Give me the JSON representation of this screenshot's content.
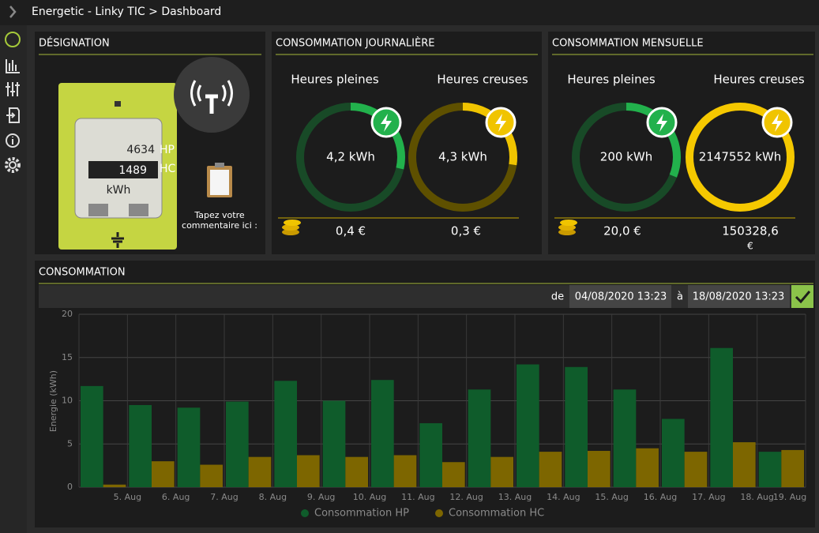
{
  "breadcrumb": "Energetic - Linky TIC > Dashboard",
  "designation": {
    "title": "DÉSIGNATION",
    "meter": {
      "hp": 4634,
      "hp_label": "HP",
      "hc": 1489,
      "hc_label": "HC",
      "unit": "kWh"
    },
    "comment": [
      "Tapez votre",
      "commentaire ici :"
    ]
  },
  "daily": {
    "title": "CONSOMMATION JOURNALIÈRE",
    "hp": {
      "label": "Heures pleines",
      "value": "4,2 kWh",
      "cost": "0,4 €"
    },
    "hc": {
      "label": "Heures creuses",
      "value": "4,3 kWh",
      "cost": "0,3 €"
    }
  },
  "monthly": {
    "title": "CONSOMMATION MENSUELLE",
    "hp": {
      "label": "Heures pleines",
      "value": "200 kWh",
      "cost": "20,0 €"
    },
    "hc": {
      "label": "Heures creuses",
      "value": "2147552 kWh",
      "cost": [
        "150328,6",
        "€"
      ]
    }
  },
  "consumption": {
    "title": "CONSOMMATION",
    "from_label": "de",
    "from": "04/08/2020 13:23",
    "to_label": "à",
    "to": "18/08/2020 13:23",
    "chart_data": {
      "type": "bar",
      "ylabel": "Energie (kWh)",
      "categories": [
        "5. Aug",
        "6. Aug",
        "7. Aug",
        "8. Aug",
        "9. Aug",
        "10. Aug",
        "11. Aug",
        "12. Aug",
        "13. Aug",
        "14. Aug",
        "15. Aug",
        "16. Aug",
        "17. Aug",
        "18. Aug",
        "19. Aug"
      ],
      "series": [
        {
          "name": "Consommation HP",
          "color": "#0f5c2b",
          "values": [
            11.7,
            9.5,
            9.2,
            9.9,
            12.3,
            10.0,
            12.4,
            7.4,
            11.3,
            14.2,
            13.9,
            11.3,
            7.9,
            16.1,
            4.1
          ]
        },
        {
          "name": "Consommation HC",
          "color": "#7d6600",
          "values": [
            0.3,
            3.0,
            2.6,
            3.5,
            3.7,
            3.5,
            3.7,
            2.9,
            3.5,
            4.1,
            4.2,
            4.5,
            4.1,
            5.2,
            4.3
          ]
        }
      ],
      "ylim": [
        0,
        20
      ],
      "yticks": [
        0,
        5,
        10,
        15,
        20
      ],
      "grid": true
    }
  }
}
